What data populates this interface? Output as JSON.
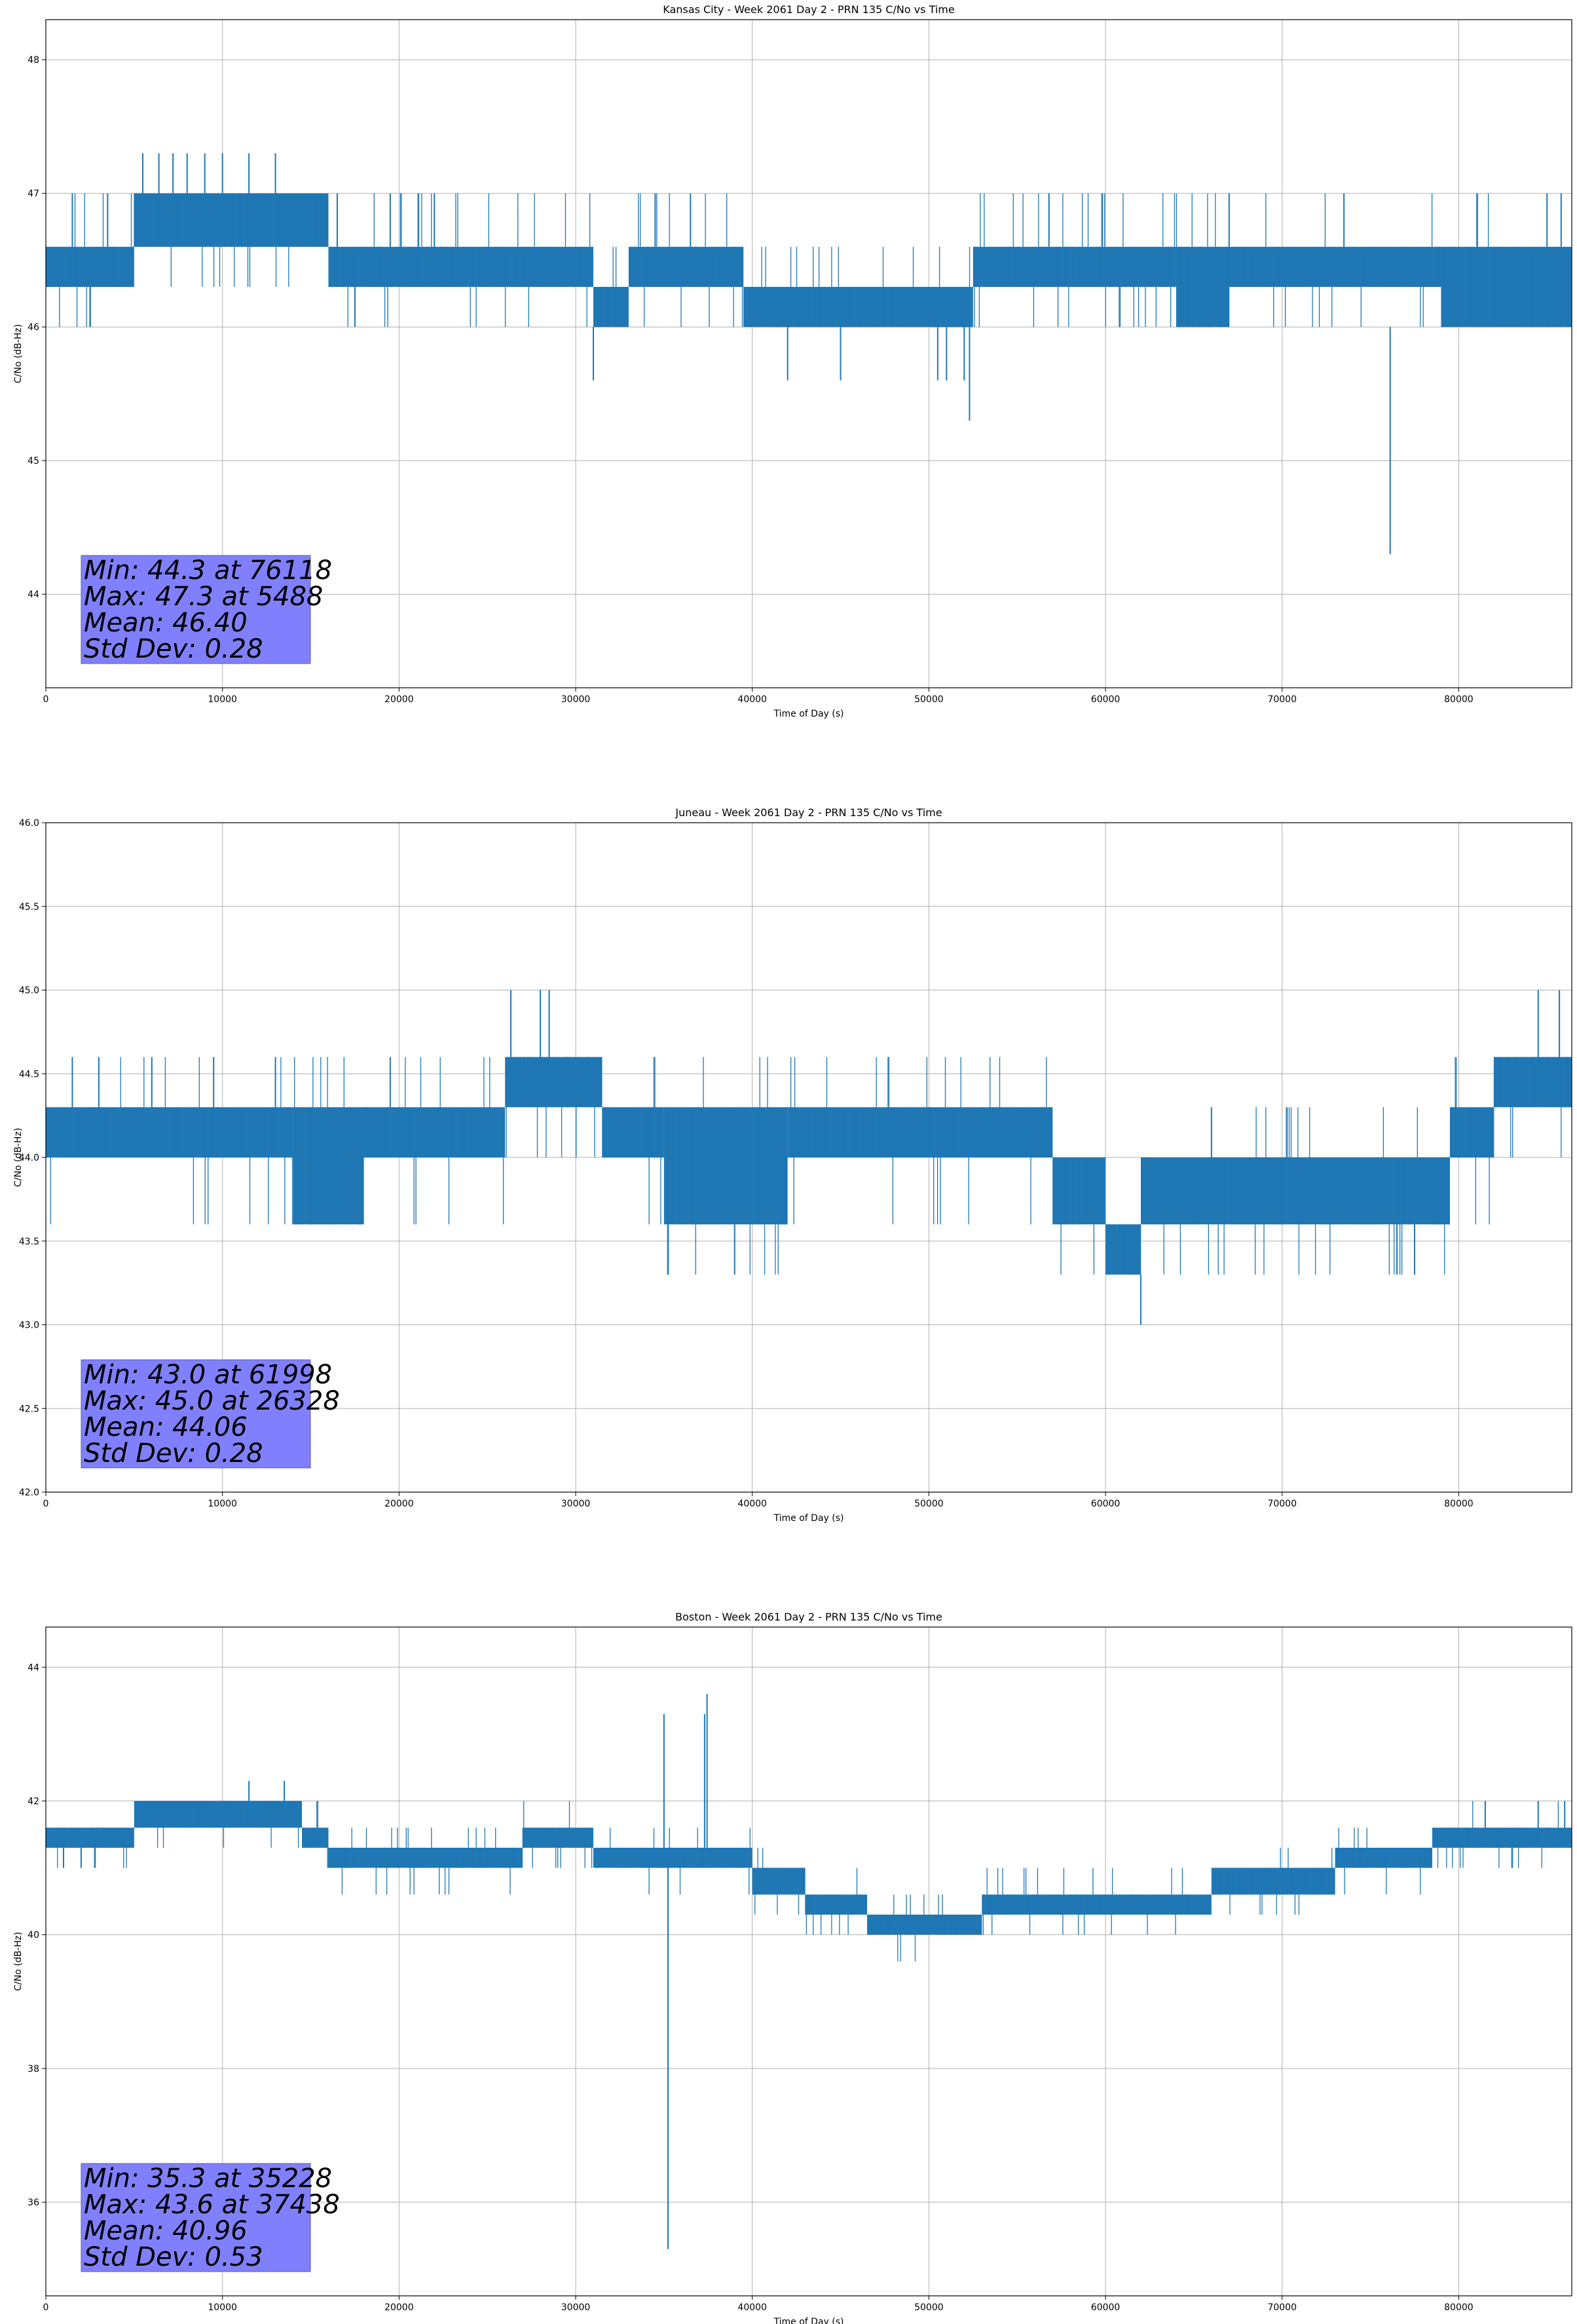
{
  "chart_data": [
    {
      "type": "line",
      "title": "Kansas City - Week 2061 Day 2 - PRN 135 C/No vs Time",
      "xlabel": "Time of Day (s)",
      "ylabel": "C/No (dB-Hz)",
      "xlim": [
        0,
        86400
      ],
      "ylim": [
        43.3,
        48.3
      ],
      "xticks": [
        0,
        10000,
        20000,
        30000,
        40000,
        50000,
        60000,
        70000,
        80000
      ],
      "yticks": [
        44,
        45,
        46,
        47,
        48
      ],
      "grid": true,
      "color": "#1f77b4",
      "stats_box": {
        "color": "#8080ff",
        "lines": [
          "Min: 44.3 at 76118",
          "Max: 47.3 at 5488",
          "Mean: 46.40",
          "Std Dev: 0.28"
        ]
      },
      "band_segments": [
        {
          "x": [
            0,
            5000
          ],
          "y": [
            46.3,
            46.6
          ]
        },
        {
          "x": [
            5000,
            16000
          ],
          "y": [
            46.6,
            47.0
          ]
        },
        {
          "x": [
            16000,
            31000
          ],
          "y": [
            46.3,
            46.6
          ]
        },
        {
          "x": [
            31000,
            33000
          ],
          "y": [
            46.0,
            46.3
          ]
        },
        {
          "x": [
            33000,
            39500
          ],
          "y": [
            46.3,
            46.6
          ]
        },
        {
          "x": [
            39500,
            52500
          ],
          "y": [
            46.0,
            46.3
          ]
        },
        {
          "x": [
            52500,
            64000
          ],
          "y": [
            46.3,
            46.6
          ]
        },
        {
          "x": [
            64000,
            67000
          ],
          "y": [
            46.0,
            46.6
          ]
        },
        {
          "x": [
            67000,
            79000
          ],
          "y": [
            46.3,
            46.6
          ]
        },
        {
          "x": [
            79000,
            86400
          ],
          "y": [
            46.0,
            46.6
          ]
        }
      ],
      "spikes": [
        {
          "x": 1500,
          "y0": 46.3,
          "y1": 47.0
        },
        {
          "x": 2500,
          "y0": 46.0,
          "y1": 46.3
        },
        {
          "x": 3500,
          "y0": 46.3,
          "y1": 47.0
        },
        {
          "x": 5488,
          "y0": 46.6,
          "y1": 47.3
        },
        {
          "x": 6400,
          "y0": 46.6,
          "y1": 47.3
        },
        {
          "x": 7200,
          "y0": 46.6,
          "y1": 47.3
        },
        {
          "x": 8000,
          "y0": 46.6,
          "y1": 47.3
        },
        {
          "x": 9000,
          "y0": 46.6,
          "y1": 47.3
        },
        {
          "x": 10000,
          "y0": 46.6,
          "y1": 47.3
        },
        {
          "x": 11500,
          "y0": 46.6,
          "y1": 47.3
        },
        {
          "x": 13000,
          "y0": 46.6,
          "y1": 47.3
        },
        {
          "x": 16500,
          "y0": 46.3,
          "y1": 47.0
        },
        {
          "x": 17500,
          "y0": 46.0,
          "y1": 46.3
        },
        {
          "x": 19500,
          "y0": 46.3,
          "y1": 47.0
        },
        {
          "x": 22000,
          "y0": 46.3,
          "y1": 47.0
        },
        {
          "x": 31000,
          "y0": 45.6,
          "y1": 46.0
        },
        {
          "x": 34500,
          "y0": 46.3,
          "y1": 47.0
        },
        {
          "x": 36500,
          "y0": 46.6,
          "y1": 47.0
        },
        {
          "x": 42000,
          "y0": 45.6,
          "y1": 46.0
        },
        {
          "x": 45000,
          "y0": 45.6,
          "y1": 46.0
        },
        {
          "x": 50500,
          "y0": 45.6,
          "y1": 46.0
        },
        {
          "x": 51000,
          "y0": 45.6,
          "y1": 46.0
        },
        {
          "x": 52000,
          "y0": 45.6,
          "y1": 46.0
        },
        {
          "x": 52300,
          "y0": 45.3,
          "y1": 46.0
        },
        {
          "x": 56800,
          "y0": 46.6,
          "y1": 47.0
        },
        {
          "x": 67000,
          "y0": 46.6,
          "y1": 47.0
        },
        {
          "x": 73500,
          "y0": 46.6,
          "y1": 47.0
        },
        {
          "x": 76118,
          "y0": 44.3,
          "y1": 46.0
        },
        {
          "x": 85000,
          "y0": 46.6,
          "y1": 47.0
        },
        {
          "x": 85800,
          "y0": 46.6,
          "y1": 47.0
        }
      ],
      "jitter": {
        "step": 55,
        "levels": [
          46.0,
          46.3,
          46.6,
          47.0
        ]
      }
    },
    {
      "type": "line",
      "title": "Juneau - Week 2061 Day 2 - PRN 135 C/No vs Time",
      "xlabel": "Time of Day (s)",
      "ylabel": "C/No (dB-Hz)",
      "xlim": [
        0,
        86400
      ],
      "ylim": [
        42.0,
        46.0
      ],
      "xticks": [
        0,
        10000,
        20000,
        30000,
        40000,
        50000,
        60000,
        70000,
        80000
      ],
      "yticks": [
        42.0,
        42.5,
        43.0,
        43.5,
        44.0,
        44.5,
        45.0,
        45.5,
        46.0
      ],
      "grid": true,
      "color": "#1f77b4",
      "stats_box": {
        "color": "#8080ff",
        "lines": [
          "Min: 43.0 at 61998",
          "Max: 45.0 at 26328",
          "Mean: 44.06",
          "Std Dev: 0.28"
        ]
      },
      "band_segments": [
        {
          "x": [
            0,
            14000
          ],
          "y": [
            44.0,
            44.3
          ]
        },
        {
          "x": [
            14000,
            18000
          ],
          "y": [
            43.6,
            44.3
          ]
        },
        {
          "x": [
            18000,
            26000
          ],
          "y": [
            44.0,
            44.3
          ]
        },
        {
          "x": [
            26000,
            31500
          ],
          "y": [
            44.3,
            44.6
          ]
        },
        {
          "x": [
            31500,
            35000
          ],
          "y": [
            44.0,
            44.3
          ]
        },
        {
          "x": [
            35000,
            42000
          ],
          "y": [
            43.6,
            44.3
          ]
        },
        {
          "x": [
            42000,
            57000
          ],
          "y": [
            44.0,
            44.3
          ]
        },
        {
          "x": [
            57000,
            60000
          ],
          "y": [
            43.6,
            44.0
          ]
        },
        {
          "x": [
            60000,
            62000
          ],
          "y": [
            43.3,
            43.6
          ]
        },
        {
          "x": [
            62000,
            79500
          ],
          "y": [
            43.6,
            44.0
          ]
        },
        {
          "x": [
            79500,
            82000
          ],
          "y": [
            44.0,
            44.3
          ]
        },
        {
          "x": [
            82000,
            86400
          ],
          "y": [
            44.3,
            44.6
          ]
        }
      ],
      "spikes": [
        {
          "x": 1500,
          "y0": 44.3,
          "y1": 44.6
        },
        {
          "x": 3000,
          "y0": 44.3,
          "y1": 44.6
        },
        {
          "x": 6000,
          "y0": 44.3,
          "y1": 44.6
        },
        {
          "x": 9500,
          "y0": 44.3,
          "y1": 44.6
        },
        {
          "x": 13000,
          "y0": 44.3,
          "y1": 44.6
        },
        {
          "x": 19500,
          "y0": 44.3,
          "y1": 44.6
        },
        {
          "x": 26328,
          "y0": 44.6,
          "y1": 45.0
        },
        {
          "x": 28000,
          "y0": 44.6,
          "y1": 45.0
        },
        {
          "x": 28500,
          "y0": 44.6,
          "y1": 45.0
        },
        {
          "x": 39000,
          "y0": 43.3,
          "y1": 43.6
        },
        {
          "x": 61998,
          "y0": 43.0,
          "y1": 43.3
        },
        {
          "x": 66000,
          "y0": 44.0,
          "y1": 44.3
        },
        {
          "x": 76500,
          "y0": 43.3,
          "y1": 43.6
        },
        {
          "x": 77500,
          "y0": 43.3,
          "y1": 43.6
        },
        {
          "x": 84500,
          "y0": 44.6,
          "y1": 45.0
        },
        {
          "x": 85700,
          "y0": 44.6,
          "y1": 45.0
        }
      ],
      "jitter": {
        "step": 55,
        "levels": [
          43.3,
          43.6,
          44.0,
          44.3,
          44.6
        ]
      }
    },
    {
      "type": "line",
      "title": "Boston - Week 2061 Day 2 - PRN 135 C/No vs Time",
      "xlabel": "Time of Day (s)",
      "ylabel": "C/No (dB-Hz)",
      "xlim": [
        0,
        86400
      ],
      "ylim": [
        34.6,
        44.6
      ],
      "xticks": [
        0,
        10000,
        20000,
        30000,
        40000,
        50000,
        60000,
        70000,
        80000
      ],
      "yticks": [
        36,
        38,
        40,
        42,
        44
      ],
      "grid": true,
      "color": "#1f77b4",
      "stats_box": {
        "color": "#8080ff",
        "lines": [
          "Min: 35.3 at 35228",
          "Max: 43.6 at 37438",
          "Mean: 40.96",
          "Std Dev: 0.53"
        ]
      },
      "band_segments": [
        {
          "x": [
            0,
            5000
          ],
          "y": [
            41.3,
            41.6
          ]
        },
        {
          "x": [
            5000,
            14500
          ],
          "y": [
            41.6,
            42.0
          ]
        },
        {
          "x": [
            14500,
            16000
          ],
          "y": [
            41.3,
            41.6
          ]
        },
        {
          "x": [
            16000,
            27000
          ],
          "y": [
            41.0,
            41.3
          ]
        },
        {
          "x": [
            27000,
            31000
          ],
          "y": [
            41.3,
            41.6
          ]
        },
        {
          "x": [
            31000,
            40000
          ],
          "y": [
            41.0,
            41.3
          ]
        },
        {
          "x": [
            40000,
            43000
          ],
          "y": [
            40.6,
            41.0
          ]
        },
        {
          "x": [
            43000,
            46500
          ],
          "y": [
            40.3,
            40.6
          ]
        },
        {
          "x": [
            46500,
            53000
          ],
          "y": [
            40.0,
            40.3
          ]
        },
        {
          "x": [
            53000,
            58000
          ],
          "y": [
            40.3,
            40.6
          ]
        },
        {
          "x": [
            58000,
            66000
          ],
          "y": [
            40.3,
            40.6
          ]
        },
        {
          "x": [
            66000,
            73000
          ],
          "y": [
            40.6,
            41.0
          ]
        },
        {
          "x": [
            73000,
            78500
          ],
          "y": [
            41.0,
            41.3
          ]
        },
        {
          "x": [
            78500,
            86400
          ],
          "y": [
            41.3,
            41.6
          ]
        }
      ],
      "spikes": [
        {
          "x": 1000,
          "y0": 41.0,
          "y1": 41.3
        },
        {
          "x": 2000,
          "y0": 41.0,
          "y1": 41.3
        },
        {
          "x": 11500,
          "y0": 42.0,
          "y1": 42.3
        },
        {
          "x": 13500,
          "y0": 42.0,
          "y1": 42.3
        },
        {
          "x": 35000,
          "y0": 41.3,
          "y1": 43.3
        },
        {
          "x": 35228,
          "y0": 35.3,
          "y1": 41.0
        },
        {
          "x": 37438,
          "y0": 41.3,
          "y1": 43.6
        },
        {
          "x": 37300,
          "y0": 41.3,
          "y1": 43.3
        },
        {
          "x": 81500,
          "y0": 41.6,
          "y1": 42.0
        },
        {
          "x": 84500,
          "y0": 41.6,
          "y1": 42.0
        },
        {
          "x": 86000,
          "y0": 41.6,
          "y1": 42.0
        }
      ],
      "jitter": {
        "step": 55,
        "levels": [
          39.6,
          40.0,
          40.3,
          40.6,
          41.0,
          41.3,
          41.6,
          42.0
        ]
      }
    }
  ]
}
